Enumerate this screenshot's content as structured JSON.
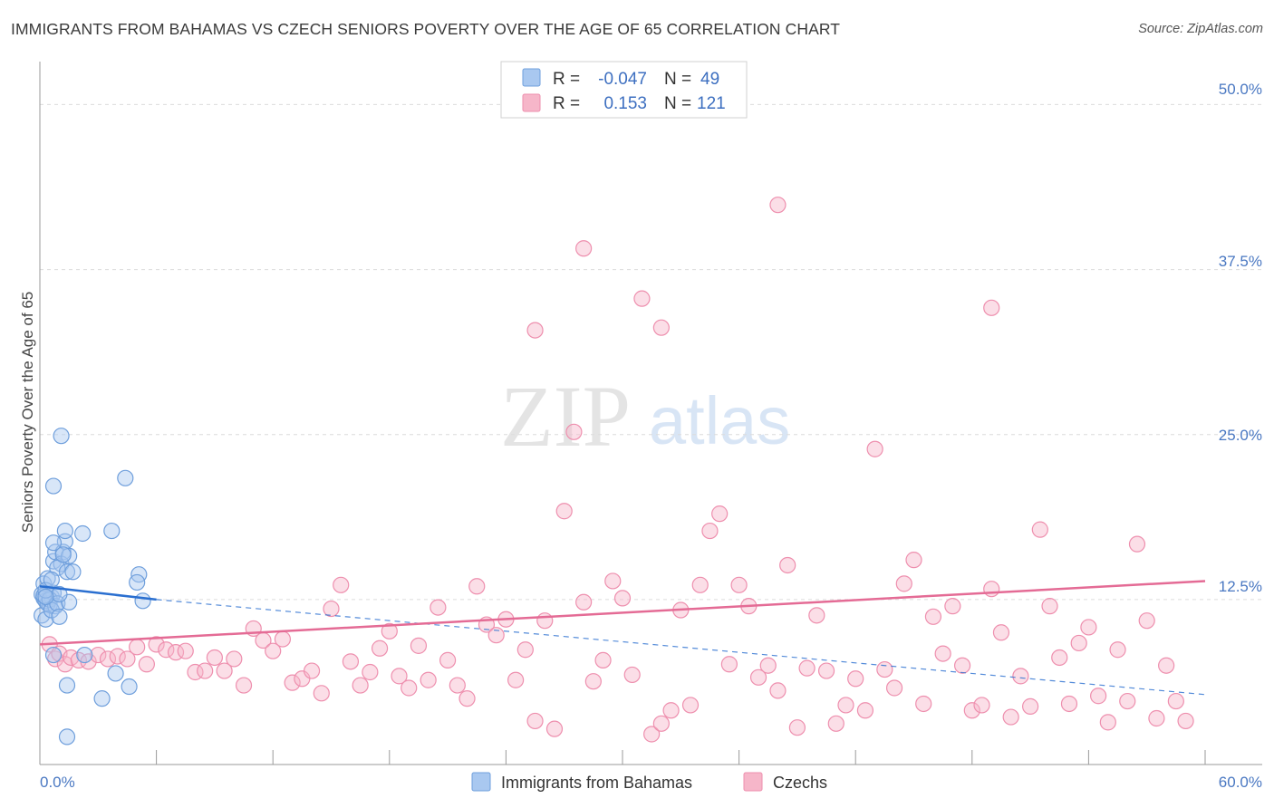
{
  "header": {
    "title": "IMMIGRANTS FROM BAHAMAS VS CZECH SENIORS POVERTY OVER THE AGE OF 65 CORRELATION CHART",
    "source": "Source: ZipAtlas.com"
  },
  "legend_top": [
    {
      "r_label": "R =",
      "r_value": "-0.047",
      "n_label": "N =",
      "n_value": "49"
    },
    {
      "r_label": "R =",
      "r_value": "0.153",
      "n_label": "N =",
      "n_value": "121"
    }
  ],
  "legend_bottom": [
    "Immigrants from Bahamas",
    "Czechs"
  ],
  "watermark": {
    "zip": "ZIP",
    "atlas": "atlas"
  },
  "colors": {
    "blue_fill": "#a9c8f0",
    "blue_stroke": "#6f9fdc",
    "blue_line": "#2a6fd0",
    "pink_fill": "#f6b6c9",
    "pink_stroke": "#ee8fae",
    "pink_line": "#e46b95",
    "tick_text": "#4a78c2",
    "grid": "#dcdcdc"
  },
  "chart_data": {
    "type": "scatter",
    "title": "IMMIGRANTS FROM BAHAMAS VS CZECH SENIORS POVERTY OVER THE AGE OF 65 CORRELATION CHART",
    "xlabel": "",
    "ylabel": "Seniors Poverty Over the Age of 65",
    "xlim": [
      0,
      60
    ],
    "ylim": [
      0,
      52.5
    ],
    "x_tick_labels": [
      "0.0%",
      "60.0%"
    ],
    "y_tick_labels": [
      "12.5%",
      "25.0%",
      "37.5%",
      "50.0%"
    ],
    "y_ticks": [
      12.5,
      25,
      37.5,
      50
    ],
    "series": [
      {
        "name": "Immigrants from Bahamas",
        "r": -0.047,
        "n": 49,
        "trend_solid": [
          [
            0,
            13.5
          ],
          [
            6,
            12.5
          ]
        ],
        "trend_dashed": [
          [
            6,
            12.5
          ],
          [
            60,
            5.3
          ]
        ],
        "points": [
          [
            0.1,
            12.9
          ],
          [
            0.2,
            12.6
          ],
          [
            0.3,
            12.4
          ],
          [
            0.2,
            13.7
          ],
          [
            0.4,
            14.1
          ],
          [
            0.1,
            11.3
          ],
          [
            0.3,
            11.0
          ],
          [
            0.5,
            12.1
          ],
          [
            0.6,
            12.7
          ],
          [
            0.4,
            12.2
          ],
          [
            0.7,
            13.0
          ],
          [
            0.2,
            12.8
          ],
          [
            0.5,
            12.5
          ],
          [
            0.8,
            12.0
          ],
          [
            0.3,
            13.2
          ],
          [
            0.6,
            11.7
          ],
          [
            0.9,
            12.2
          ],
          [
            1.0,
            11.2
          ],
          [
            0.7,
            15.4
          ],
          [
            0.8,
            16.1
          ],
          [
            1.2,
            16.1
          ],
          [
            1.1,
            15.2
          ],
          [
            1.3,
            16.9
          ],
          [
            1.5,
            15.8
          ],
          [
            0.9,
            14.9
          ],
          [
            1.4,
            14.6
          ],
          [
            1.7,
            14.6
          ],
          [
            1.2,
            15.9
          ],
          [
            0.7,
            16.8
          ],
          [
            1.3,
            17.7
          ],
          [
            2.2,
            17.5
          ],
          [
            3.7,
            17.7
          ],
          [
            0.7,
            21.1
          ],
          [
            1.1,
            24.9
          ],
          [
            4.4,
            21.7
          ],
          [
            5.1,
            14.4
          ],
          [
            5.0,
            13.8
          ],
          [
            5.3,
            12.4
          ],
          [
            1.5,
            12.3
          ],
          [
            2.3,
            8.3
          ],
          [
            0.7,
            8.3
          ],
          [
            1.4,
            6.0
          ],
          [
            3.9,
            6.9
          ],
          [
            3.2,
            5.0
          ],
          [
            4.6,
            5.9
          ],
          [
            1.4,
            2.1
          ],
          [
            0.6,
            14.0
          ],
          [
            1.0,
            12.9
          ],
          [
            0.3,
            12.7
          ]
        ]
      },
      {
        "name": "Czechs",
        "r": 0.153,
        "n": 121,
        "trend_solid": [
          [
            0,
            9.1
          ],
          [
            60,
            13.9
          ]
        ],
        "points": [
          [
            0.5,
            9.1
          ],
          [
            0.8,
            8.0
          ],
          [
            1.0,
            8.4
          ],
          [
            1.3,
            7.6
          ],
          [
            1.6,
            8.1
          ],
          [
            2.0,
            7.9
          ],
          [
            2.5,
            7.8
          ],
          [
            3.0,
            8.3
          ],
          [
            3.5,
            8.0
          ],
          [
            4.0,
            8.2
          ],
          [
            4.5,
            8.0
          ],
          [
            5.0,
            8.9
          ],
          [
            5.5,
            7.6
          ],
          [
            6.0,
            9.1
          ],
          [
            6.5,
            8.7
          ],
          [
            7.0,
            8.5
          ],
          [
            7.5,
            8.6
          ],
          [
            8.0,
            7.0
          ],
          [
            8.5,
            7.1
          ],
          [
            9.0,
            8.1
          ],
          [
            9.5,
            7.1
          ],
          [
            10.0,
            8.0
          ],
          [
            10.5,
            6.0
          ],
          [
            11.0,
            10.3
          ],
          [
            11.5,
            9.4
          ],
          [
            12.0,
            8.6
          ],
          [
            12.5,
            9.5
          ],
          [
            13.0,
            6.2
          ],
          [
            13.5,
            6.5
          ],
          [
            14.0,
            7.1
          ],
          [
            14.5,
            5.4
          ],
          [
            15.0,
            11.8
          ],
          [
            15.5,
            13.6
          ],
          [
            16.0,
            7.8
          ],
          [
            16.5,
            6.0
          ],
          [
            17.0,
            7.0
          ],
          [
            17.5,
            8.8
          ],
          [
            18.0,
            10.1
          ],
          [
            18.5,
            6.7
          ],
          [
            19.0,
            5.8
          ],
          [
            19.5,
            9.0
          ],
          [
            20.0,
            6.4
          ],
          [
            20.5,
            11.9
          ],
          [
            21.0,
            7.9
          ],
          [
            21.5,
            6.0
          ],
          [
            22.0,
            5.0
          ],
          [
            22.5,
            13.5
          ],
          [
            23.0,
            10.6
          ],
          [
            23.5,
            9.8
          ],
          [
            24.0,
            11.0
          ],
          [
            24.5,
            6.4
          ],
          [
            25.0,
            8.7
          ],
          [
            25.5,
            3.3
          ],
          [
            26.0,
            10.9
          ],
          [
            26.5,
            2.7
          ],
          [
            27.0,
            19.2
          ],
          [
            27.5,
            25.2
          ],
          [
            28.0,
            12.3
          ],
          [
            28.5,
            6.3
          ],
          [
            29.0,
            7.9
          ],
          [
            29.5,
            13.9
          ],
          [
            30.0,
            12.6
          ],
          [
            30.5,
            6.8
          ],
          [
            31.0,
            35.3
          ],
          [
            31.5,
            2.3
          ],
          [
            32.0,
            3.1
          ],
          [
            32.5,
            4.1
          ],
          [
            33.0,
            11.7
          ],
          [
            33.5,
            4.5
          ],
          [
            34.0,
            13.6
          ],
          [
            34.5,
            17.7
          ],
          [
            35.0,
            19.0
          ],
          [
            35.5,
            7.6
          ],
          [
            36.0,
            13.6
          ],
          [
            36.5,
            12.0
          ],
          [
            37.0,
            6.6
          ],
          [
            37.5,
            7.5
          ],
          [
            38.0,
            5.6
          ],
          [
            38.5,
            15.1
          ],
          [
            39.0,
            2.8
          ],
          [
            39.5,
            7.3
          ],
          [
            40.0,
            11.3
          ],
          [
            40.5,
            7.1
          ],
          [
            41.0,
            3.1
          ],
          [
            41.5,
            4.5
          ],
          [
            42.0,
            6.5
          ],
          [
            42.5,
            4.1
          ],
          [
            43.0,
            23.9
          ],
          [
            43.5,
            7.2
          ],
          [
            44.0,
            5.8
          ],
          [
            44.5,
            13.7
          ],
          [
            45.0,
            15.5
          ],
          [
            45.5,
            4.6
          ],
          [
            46.0,
            11.2
          ],
          [
            46.5,
            8.4
          ],
          [
            47.0,
            12.0
          ],
          [
            47.5,
            7.5
          ],
          [
            48.0,
            4.1
          ],
          [
            48.5,
            4.5
          ],
          [
            49.0,
            13.3
          ],
          [
            49.5,
            10.0
          ],
          [
            50.0,
            3.6
          ],
          [
            50.5,
            6.7
          ],
          [
            51.0,
            4.4
          ],
          [
            51.5,
            17.8
          ],
          [
            52.0,
            12.0
          ],
          [
            52.5,
            8.1
          ],
          [
            53.0,
            4.6
          ],
          [
            53.5,
            9.2
          ],
          [
            54.0,
            10.4
          ],
          [
            54.5,
            5.2
          ],
          [
            55.0,
            3.2
          ],
          [
            55.5,
            8.7
          ],
          [
            56.0,
            4.8
          ],
          [
            56.5,
            16.7
          ],
          [
            57.0,
            10.9
          ],
          [
            57.5,
            3.5
          ],
          [
            58.0,
            7.5
          ],
          [
            58.5,
            4.8
          ],
          [
            59.0,
            3.3
          ],
          [
            25.5,
            32.9
          ],
          [
            28.0,
            39.1
          ],
          [
            32.0,
            33.1
          ],
          [
            38.0,
            42.4
          ],
          [
            49.0,
            34.6
          ]
        ]
      }
    ]
  }
}
